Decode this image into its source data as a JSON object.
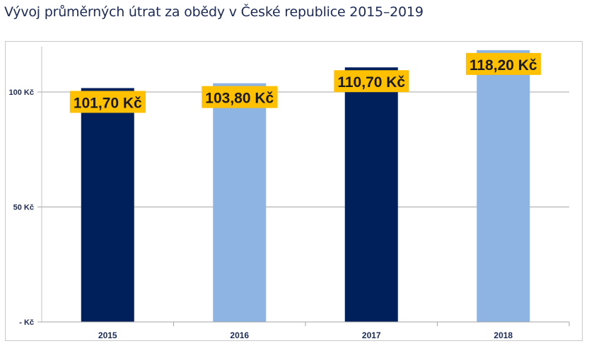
{
  "title": "Vývoj průměrných útrat za obědy v České republice 2015–2019",
  "colors": {
    "dark_bar": "#00205b",
    "light_bar": "#8eb4e3",
    "label_bg": "#ffc000",
    "axis_text": "#1b2a57",
    "gridline": "#a6a6a6"
  },
  "chart_data": {
    "type": "bar",
    "title": "Vývoj průměrných útrat za obědy v České republice 2015–2019",
    "xlabel": "",
    "ylabel": "",
    "categories": [
      "2015",
      "2016",
      "2017",
      "2018"
    ],
    "values": [
      101.7,
      103.8,
      110.7,
      118.2
    ],
    "data_labels": [
      "101,70 Kč",
      "103,80 Kč",
      "110,70 Kč",
      "118,20 Kč"
    ],
    "bar_colors": [
      "dark",
      "light",
      "dark",
      "light"
    ],
    "ylim": [
      0,
      120
    ],
    "yticks": [
      0,
      50,
      100
    ],
    "ytick_labels": [
      "-   Kč",
      "50 Kč",
      "100 Kč"
    ],
    "grid": true,
    "legend": "none",
    "currency": "Kč"
  }
}
